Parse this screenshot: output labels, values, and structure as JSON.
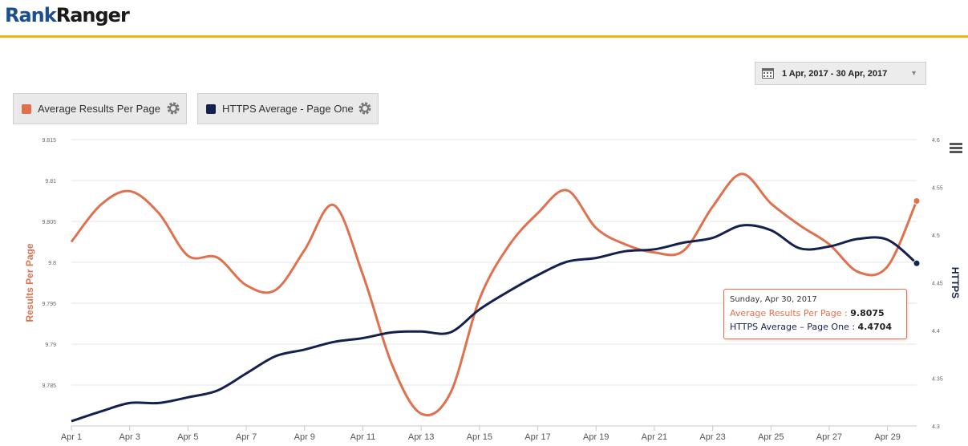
{
  "brand": {
    "part1": "Rank",
    "part2": "Ranger"
  },
  "date_range": {
    "label": "1 Apr, 2017 - 30 Apr, 2017",
    "icon": "calendar-icon"
  },
  "legend": [
    {
      "label": "Average Results Per Page",
      "color": "#e0714f"
    },
    {
      "label": "HTTPS Average - Page One",
      "color": "#14214f"
    }
  ],
  "tooltip": {
    "date": "Sunday, Apr 30, 2017",
    "rows": [
      {
        "label": "Average Results Per Page",
        "value": "9.8075"
      },
      {
        "label": "HTTPS Average – Page One",
        "value": "4.4704"
      }
    ]
  },
  "chart_data": {
    "type": "line",
    "title": "",
    "xlabel": "",
    "ylabel": "Results Per Page",
    "y2label": "HTTPS",
    "x": [
      "Apr 1",
      "Apr 2",
      "Apr 3",
      "Apr 4",
      "Apr 5",
      "Apr 6",
      "Apr 7",
      "Apr 8",
      "Apr 9",
      "Apr 10",
      "Apr 11",
      "Apr 12",
      "Apr 13",
      "Apr 14",
      "Apr 15",
      "Apr 16",
      "Apr 17",
      "Apr 18",
      "Apr 19",
      "Apr 20",
      "Apr 21",
      "Apr 22",
      "Apr 23",
      "Apr 24",
      "Apr 25",
      "Apr 26",
      "Apr 27",
      "Apr 28",
      "Apr 29",
      "Apr 30"
    ],
    "x_tick_labels": [
      "Apr 1",
      "Apr 3",
      "Apr 5",
      "Apr 7",
      "Apr 9",
      "Apr 11",
      "Apr 13",
      "Apr 15",
      "Apr 17",
      "Apr 19",
      "Apr 21",
      "Apr 23",
      "Apr 25",
      "Apr 27",
      "Apr 29"
    ],
    "ylim": [
      9.78,
      9.815
    ],
    "y_ticks": [
      "9.785",
      "9.79",
      "9.795",
      "9.8",
      "9.805",
      "9.81",
      "9.815"
    ],
    "y2lim": [
      4.3,
      4.6
    ],
    "y2_ticks": [
      "4.3",
      "4.35",
      "4.4",
      "4.45",
      "4.5",
      "4.55",
      "4.6"
    ],
    "series": [
      {
        "name": "Average Results Per Page",
        "axis": "left",
        "color": "#e0714f",
        "values": [
          9.8025,
          9.807,
          9.8087,
          9.806,
          9.8008,
          9.8006,
          9.7972,
          9.7966,
          9.8015,
          9.807,
          9.7985,
          9.7875,
          9.7815,
          9.784,
          9.7955,
          9.802,
          9.806,
          9.8088,
          9.8042,
          9.8022,
          9.8012,
          9.8014,
          9.8068,
          9.8108,
          9.8072,
          9.8045,
          9.8022,
          9.7988,
          9.7995,
          9.8075
        ]
      },
      {
        "name": "HTTPS Average - Page One",
        "axis": "right",
        "color": "#14214f",
        "values": [
          4.305,
          4.315,
          4.324,
          4.324,
          4.33,
          4.337,
          4.355,
          4.373,
          4.38,
          4.388,
          4.392,
          4.398,
          4.399,
          4.398,
          4.422,
          4.441,
          4.458,
          4.472,
          4.476,
          4.483,
          4.485,
          4.492,
          4.497,
          4.51,
          4.505,
          4.486,
          4.488,
          4.496,
          4.495,
          4.4704
        ]
      }
    ],
    "grid": true,
    "legend_position": "top-left"
  }
}
